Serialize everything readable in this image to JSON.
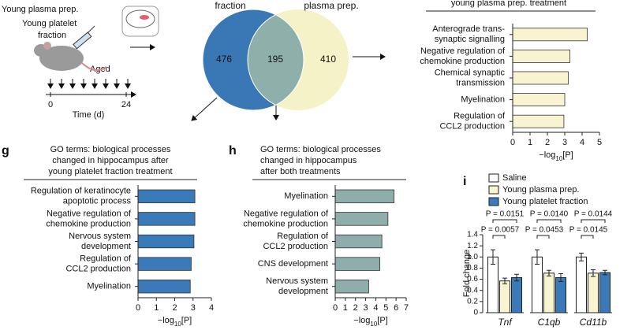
{
  "schematic": {
    "labels": [
      "Young plasma prep.",
      "Young platelet",
      "fraction",
      "Aged"
    ],
    "timeline": {
      "ticks": [
        0,
        24
      ],
      "label": "Time (d)"
    }
  },
  "chart_data": [
    {
      "type": "venn",
      "sets": [
        "fraction",
        "plasma prep."
      ],
      "values": [
        476,
        195,
        410
      ],
      "colors": [
        "#3a78b5",
        "#f4f2c6",
        "#8fb0aa"
      ]
    },
    {
      "type": "barh",
      "title": [
        "young plasma prep. treatment"
      ],
      "categories": [
        [
          "Anterograde trans-",
          "synaptic signalling"
        ],
        [
          "Negative regulation of",
          "chemokine production"
        ],
        [
          "Chemical synaptic",
          "transmission"
        ],
        [
          "Myelination"
        ],
        [
          "Regulation of",
          "CCL2 production"
        ]
      ],
      "values": [
        4.3,
        3.3,
        3.2,
        3.0,
        2.95
      ],
      "color": "#f8f4d2",
      "xlim": [
        0,
        5
      ],
      "xticks": [
        0,
        1,
        2,
        3,
        4,
        5
      ],
      "xlabel": [
        "−log",
        "10",
        "[P]"
      ]
    },
    {
      "type": "barh",
      "panel": "g",
      "title": [
        "GO terms: biological processes",
        "changed in hippocampus after",
        "young platelet fraction treatment"
      ],
      "categories": [
        [
          "Regulation of keratinocyte",
          "apoptotic process"
        ],
        [
          "Negative regulation of",
          "chemokine production"
        ],
        [
          "Nervous system",
          "development"
        ],
        [
          "Regulation of",
          "CCL2 production"
        ],
        [
          "Myelination"
        ]
      ],
      "values": [
        3.1,
        3.1,
        3.05,
        2.9,
        2.85
      ],
      "color": "#3a7ab8",
      "xlim": [
        0,
        4
      ],
      "xticks": [
        0,
        1,
        2,
        3,
        4
      ],
      "xlabel": [
        "−log",
        "10",
        "[P]"
      ]
    },
    {
      "type": "barh",
      "panel": "h",
      "title": [
        "GO terms: biological processes",
        "changed in hippocampus",
        "after both treatments"
      ],
      "categories": [
        [
          "Myelination"
        ],
        [
          "Negative regulation of",
          "chemokine production"
        ],
        [
          "Regulation of",
          "CCL2 production"
        ],
        [
          "CNS development"
        ],
        [
          "Nervous system",
          "development"
        ]
      ],
      "values": [
        5.8,
        5.2,
        4.6,
        4.4,
        3.3
      ],
      "color": "#8fadaa",
      "xlim": [
        0,
        7
      ],
      "xticks": [
        0,
        1,
        2,
        3,
        4,
        5,
        6,
        7
      ],
      "xlabel": [
        "−log",
        "10",
        "[P]"
      ]
    },
    {
      "type": "groupbar",
      "panel": "i",
      "ylabel": "Fold change",
      "categories": [
        "Tnf",
        "C1qb",
        "Cd11b"
      ],
      "series": [
        {
          "name": "Saline",
          "color": "#ffffff",
          "values": [
            1.0,
            1.0,
            1.0
          ],
          "errors": [
            0.13,
            0.13,
            0.07
          ]
        },
        {
          "name": "Young plasma prep.",
          "color": "#f8f4d2",
          "values": [
            0.57,
            0.71,
            0.71
          ],
          "errors": [
            0.05,
            0.05,
            0.06
          ]
        },
        {
          "name": "Young platelet fraction",
          "color": "#3a7ab8",
          "values": [
            0.63,
            0.63,
            0.72
          ],
          "errors": [
            0.06,
            0.07,
            0.04
          ]
        }
      ],
      "ylim": [
        0,
        1.4
      ],
      "yticks": [
        0,
        0.2,
        0.4,
        0.6,
        0.8,
        {
          "value": 1,
          "label": "1.0"
        },
        1.2,
        1.4
      ],
      "annotations": [
        {
          "text": "P = 0.0151",
          "category": 0,
          "series": [
            0,
            2
          ]
        },
        {
          "text": "P = 0.0057",
          "category": 0,
          "series": [
            0,
            1
          ]
        },
        {
          "text": "P = 0.0140",
          "category": 1,
          "series": [
            0,
            2
          ]
        },
        {
          "text": "P = 0.0453",
          "category": 1,
          "series": [
            0,
            1
          ]
        },
        {
          "text": "P = 0.0144",
          "category": 2,
          "series": [
            0,
            2
          ]
        },
        {
          "text": "P = 0.0145",
          "category": 2,
          "series": [
            0,
            1
          ]
        }
      ]
    }
  ]
}
